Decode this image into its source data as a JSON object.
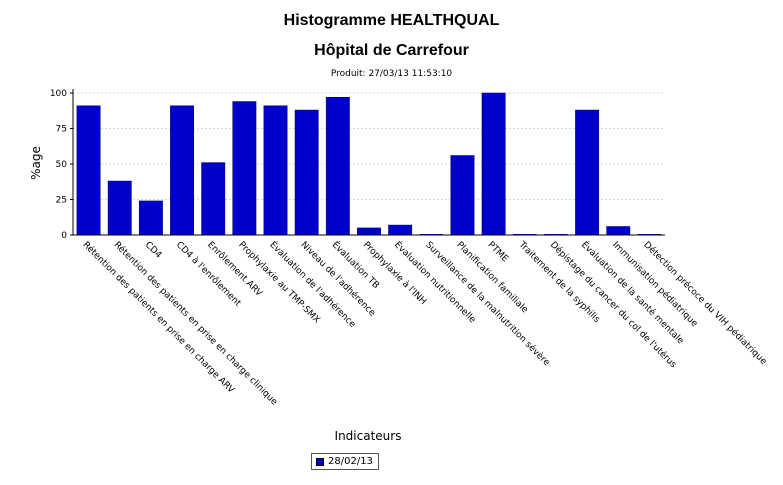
{
  "header": {
    "title": "Histogramme HEALTHQUAL",
    "subtitle": "Hôpital de Carrefour",
    "produced": "Produit: 27/03/13 11:53:10"
  },
  "chart_data": {
    "type": "bar",
    "title": "Histogramme HEALTHQUAL",
    "subtitle": "Hôpital de Carrefour",
    "xlabel": "Indicateurs",
    "ylabel": "%age",
    "ylim": [
      0,
      100
    ],
    "yticks": [
      "0",
      "25",
      "50",
      "75",
      "100"
    ],
    "grid": true,
    "legend_position": "bottom-center",
    "bar_color": "#0000cc",
    "categories": [
      "Rétention des patients en prise en charge ARV",
      "Rétention des patients en prise en charge clinique",
      "CD4",
      "CD4 à l'enrôlement",
      "Enrôlement ARV",
      "Prophylaxie au TMP-SMX",
      "Évaluation de l'adhérence",
      "Niveau de l'adhérence",
      "Évaluation TB",
      "Prophylaxie à l'INH",
      "Évaluation nutritionnelle",
      "Surveillance de la malnutrition sévère",
      "Planification familiale",
      "PTME",
      "Traitement de la syphilis",
      "Dépistage du cancer du col de l'utérus",
      "Évaluation de la santé mentale",
      "Immunisation pédiatrique",
      "Détection précoce du VIH pédiatrique"
    ],
    "series": [
      {
        "name": "28/02/13",
        "values": [
          91,
          38,
          24,
          91,
          51,
          94,
          91,
          88,
          97,
          5,
          7,
          0,
          56,
          100,
          0,
          0,
          88,
          6,
          0
        ]
      }
    ]
  }
}
